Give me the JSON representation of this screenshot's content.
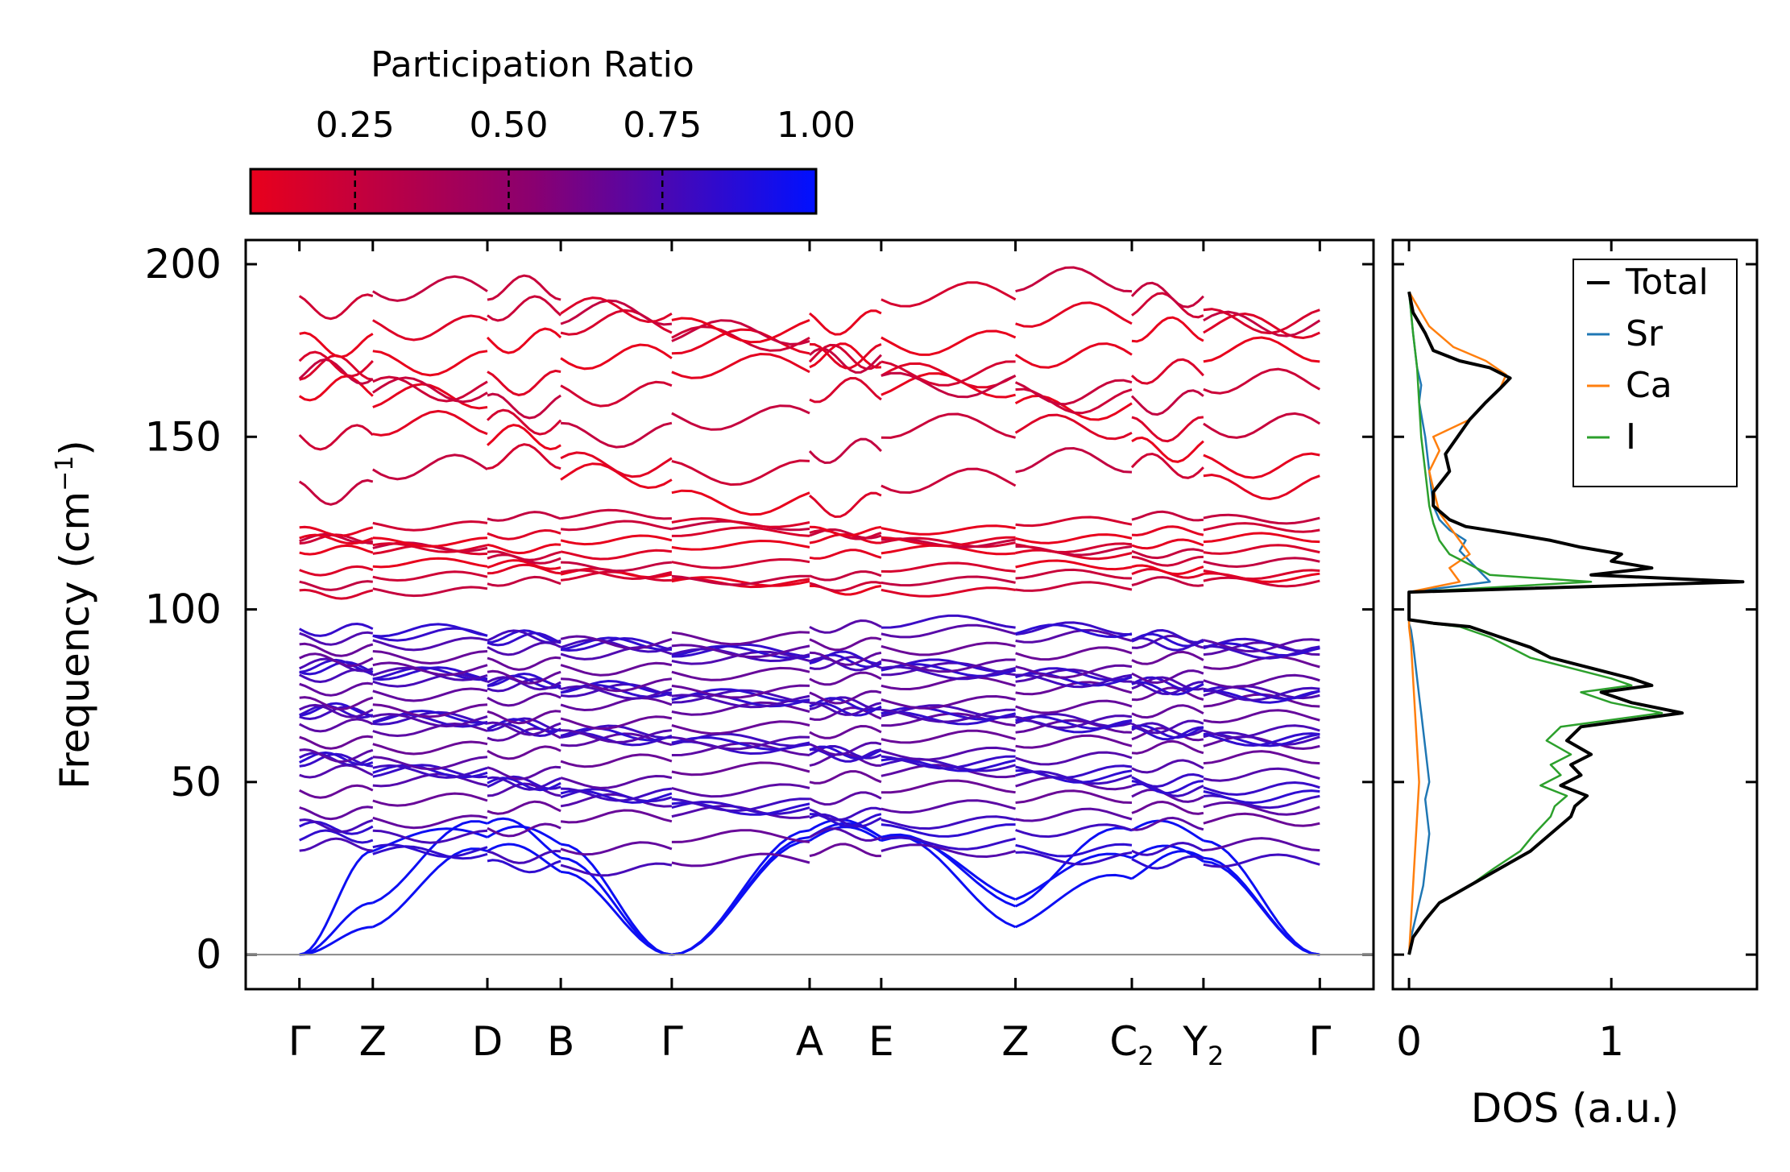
{
  "chart_data": [
    {
      "type": "line",
      "title": "",
      "ylabel": "Frequency (cm⁻¹)",
      "ylabel_main": "Frequency (cm",
      "ylabel_sup": "−1",
      "ylabel_close": ")",
      "ylim": [
        -10,
        207
      ],
      "yticks": [
        0,
        50,
        100,
        150,
        200
      ],
      "kpoints": [
        {
          "pos": 0.0,
          "label": "Γ",
          "sub": ""
        },
        {
          "pos": 0.41,
          "label": "Z",
          "sub": ""
        },
        {
          "pos": 1.05,
          "label": "D",
          "sub": ""
        },
        {
          "pos": 1.46,
          "label": "B",
          "sub": ""
        },
        {
          "pos": 2.08,
          "label": "Γ",
          "sub": ""
        },
        {
          "pos": 2.85,
          "label": "A",
          "sub": ""
        },
        {
          "pos": 3.25,
          "label": "E",
          "sub": ""
        },
        {
          "pos": 4.0,
          "label": "Z",
          "sub": ""
        },
        {
          "pos": 4.65,
          "label": "C",
          "sub": "2"
        },
        {
          "pos": 5.05,
          "label": "Y",
          "sub": "2"
        },
        {
          "pos": 5.7,
          "label": "Γ",
          "sub": ""
        }
      ],
      "xlim": [
        -0.3,
        6.0
      ],
      "colorbar": {
        "label": "Participation Ratio",
        "range": [
          0.08,
          1.0
        ],
        "ticks": [
          0.25,
          0.5,
          0.75,
          1.0
        ],
        "tick_labels": [
          "0.25",
          "0.50",
          "0.75",
          "1.00"
        ],
        "low_color": "#e8001c",
        "high_color": "#0010ff"
      },
      "acoustic_branches": {
        "endpoints": [
          0,
          15,
          0,
          34,
          34,
          8,
          28,
          25,
          0
        ],
        "branch_a": [
          0,
          15,
          38,
          28,
          0,
          33,
          33,
          16,
          28,
          27,
          0
        ],
        "branch_b": [
          0,
          8,
          30,
          24,
          0,
          34,
          34,
          8,
          22,
          28,
          0
        ],
        "branch_c": [
          0,
          30,
          34,
          32,
          0,
          36,
          34,
          14,
          36,
          33,
          0
        ]
      },
      "optical_bands_low": [
        28,
        32,
        38,
        41,
        44,
        47,
        50,
        53,
        56,
        59,
        61,
        63,
        65,
        67,
        69,
        71,
        73,
        75,
        77,
        79,
        81,
        83,
        85,
        87,
        89,
        91,
        93
      ],
      "optical_bands_high": [
        107,
        109,
        111,
        115,
        118,
        120,
        122,
        125,
        137,
        147,
        158,
        166,
        170,
        176,
        181,
        188
      ],
      "participation_low": 0.7,
      "participation_high": 0.15,
      "gap": [
        95,
        106
      ]
    },
    {
      "type": "line",
      "xlabel": "DOS (a.u.)",
      "xlim": [
        -0.08,
        1.72
      ],
      "xticks": [
        0,
        1
      ],
      "ylim": [
        -10,
        207
      ],
      "legend_position": "top-right",
      "series": [
        {
          "name": "Total",
          "color": "#000000",
          "x": [
            0,
            0.02,
            0.08,
            0.15,
            0.3,
            0.45,
            0.6,
            0.7,
            0.8,
            0.82,
            0.88,
            0.75,
            0.85,
            0.8,
            0.9,
            0.78,
            0.85,
            1.35,
            1.1,
            0.95,
            1.2,
            1.1,
            0.9,
            0.7,
            0.6,
            0.45,
            0.3,
            0.12,
            0,
            0,
            0,
            1.65,
            0.9,
            1.2,
            1.0,
            1.05,
            0.85,
            0.7,
            0.5,
            0.28,
            0.2,
            0.12,
            0.12,
            0.2,
            0.18,
            0.3,
            0.38,
            0.45,
            0.5,
            0.4,
            0.25,
            0.12,
            0.08,
            0.02,
            0
          ],
          "y": [
            0,
            5,
            10,
            15,
            20,
            25,
            30,
            35,
            40,
            43,
            46,
            49,
            52,
            55,
            58,
            62,
            66,
            70,
            73,
            76,
            78,
            80,
            83,
            86,
            89,
            92,
            95,
            96,
            97,
            100,
            105,
            108,
            110,
            112,
            114,
            116,
            118,
            120,
            122,
            124,
            126,
            130,
            134,
            140,
            145,
            155,
            160,
            164,
            167,
            170,
            172,
            175,
            180,
            186,
            192
          ]
        },
        {
          "name": "Sr",
          "color": "#1f77b4",
          "x": [
            0,
            0.01,
            0.03,
            0.05,
            0.07,
            0.08,
            0.09,
            0.1,
            0.09,
            0.08,
            0.1,
            0.09,
            0.08,
            0.07,
            0.06,
            0.05,
            0.04,
            0.03,
            0.02,
            0.01,
            0,
            0,
            0,
            0.4,
            0.35,
            0.3,
            0.25,
            0.28,
            0.2,
            0.15,
            0.12,
            0.1,
            0.08,
            0.05,
            0.06,
            0.04,
            0.03,
            0.02,
            0.01,
            0
          ],
          "y": [
            0,
            5,
            10,
            15,
            20,
            25,
            30,
            35,
            40,
            45,
            50,
            55,
            60,
            65,
            70,
            75,
            80,
            85,
            90,
            94,
            96,
            100,
            105,
            108,
            111,
            114,
            117,
            120,
            123,
            126,
            130,
            140,
            150,
            160,
            165,
            170,
            175,
            180,
            186,
            192
          ]
        },
        {
          "name": "Ca",
          "color": "#ff7f0e",
          "x": [
            0,
            0.01,
            0.02,
            0.03,
            0.04,
            0.05,
            0.04,
            0.03,
            0.02,
            0.01,
            0,
            0,
            0,
            0.25,
            0.2,
            0.3,
            0.25,
            0.2,
            0.15,
            0.12,
            0.1,
            0.15,
            0.12,
            0.3,
            0.38,
            0.45,
            0.48,
            0.38,
            0.22,
            0.1,
            0.05,
            0
          ],
          "y": [
            0,
            10,
            20,
            30,
            40,
            50,
            60,
            70,
            80,
            90,
            95,
            100,
            105,
            108,
            112,
            116,
            120,
            124,
            128,
            135,
            140,
            146,
            150,
            155,
            160,
            164,
            168,
            172,
            176,
            182,
            187,
            192
          ]
        },
        {
          "name": "I",
          "color": "#2ca02c",
          "x": [
            0,
            0.02,
            0.08,
            0.15,
            0.3,
            0.42,
            0.55,
            0.62,
            0.7,
            0.72,
            0.78,
            0.65,
            0.75,
            0.7,
            0.8,
            0.68,
            0.75,
            1.25,
            1.0,
            0.85,
            1.1,
            1.0,
            0.8,
            0.6,
            0.5,
            0.4,
            0.25,
            0.1,
            0,
            0,
            0,
            0.9,
            0.4,
            0.3,
            0.2,
            0.15,
            0.12,
            0.1,
            0.08,
            0.06,
            0.05,
            0.04,
            0.03,
            0.02,
            0.01,
            0
          ],
          "y": [
            0,
            5,
            10,
            15,
            20,
            25,
            30,
            35,
            40,
            43,
            46,
            49,
            52,
            55,
            58,
            62,
            66,
            70,
            73,
            76,
            78,
            80,
            83,
            86,
            89,
            92,
            95,
            96,
            97,
            100,
            105,
            108,
            110,
            113,
            116,
            120,
            125,
            130,
            140,
            150,
            160,
            170,
            175,
            180,
            186,
            192
          ]
        }
      ]
    }
  ]
}
